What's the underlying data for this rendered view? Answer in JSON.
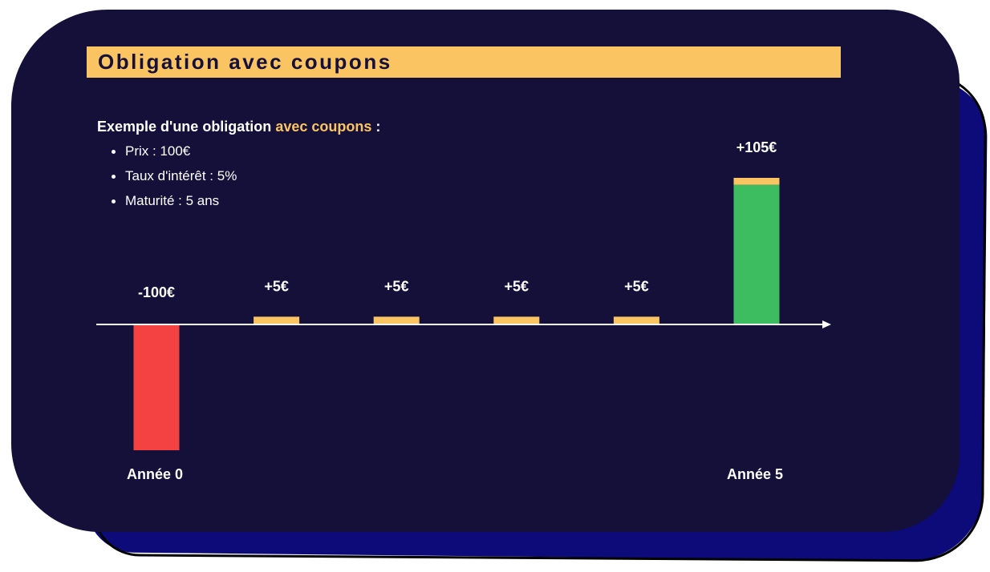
{
  "title": "Obligation avec coupons",
  "intro": {
    "prefix": "Exemple d'une obligation ",
    "highlight": "avec coupons",
    "suffix": " :"
  },
  "params": [
    "Prix : 100€",
    "Taux d'intérêt : 5%",
    "Maturité : 5 ans"
  ],
  "colors": {
    "card": "#14103a",
    "accent": "#fac462",
    "negative": "#f44242",
    "principal": "#3dbd60",
    "coupon": "#fac462"
  },
  "chart_data": {
    "type": "bar",
    "categories": [
      "Année 0",
      "",
      "",
      "",
      "",
      "Année 5"
    ],
    "values": [
      -100,
      5,
      5,
      5,
      5,
      105
    ],
    "value_labels": [
      "-100€",
      "+5€",
      "+5€",
      "+5€",
      "+5€",
      "+105€"
    ],
    "stacks": [
      [
        {
          "value": -100,
          "color": "#f44242"
        }
      ],
      [
        {
          "value": 5,
          "color": "#fac462"
        }
      ],
      [
        {
          "value": 5,
          "color": "#fac462"
        }
      ],
      [
        {
          "value": 5,
          "color": "#fac462"
        }
      ],
      [
        {
          "value": 5,
          "color": "#fac462"
        }
      ],
      [
        {
          "value": 100,
          "color": "#3dbd60"
        },
        {
          "value": 5,
          "color": "#fac462"
        }
      ]
    ],
    "ylim": [
      -100,
      105
    ]
  }
}
